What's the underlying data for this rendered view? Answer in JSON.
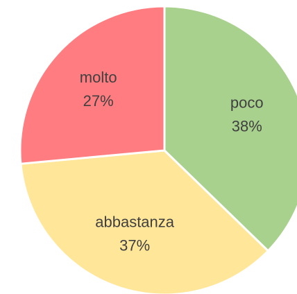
{
  "chart_data": {
    "type": "pie",
    "categories": [
      "poco",
      "abbastanza",
      "molto"
    ],
    "values": [
      38,
      37,
      27
    ],
    "value_labels": [
      "38%",
      "37%",
      "27%"
    ],
    "colors": [
      "#a9d18e",
      "#ffe699",
      "#ff7c80"
    ]
  }
}
